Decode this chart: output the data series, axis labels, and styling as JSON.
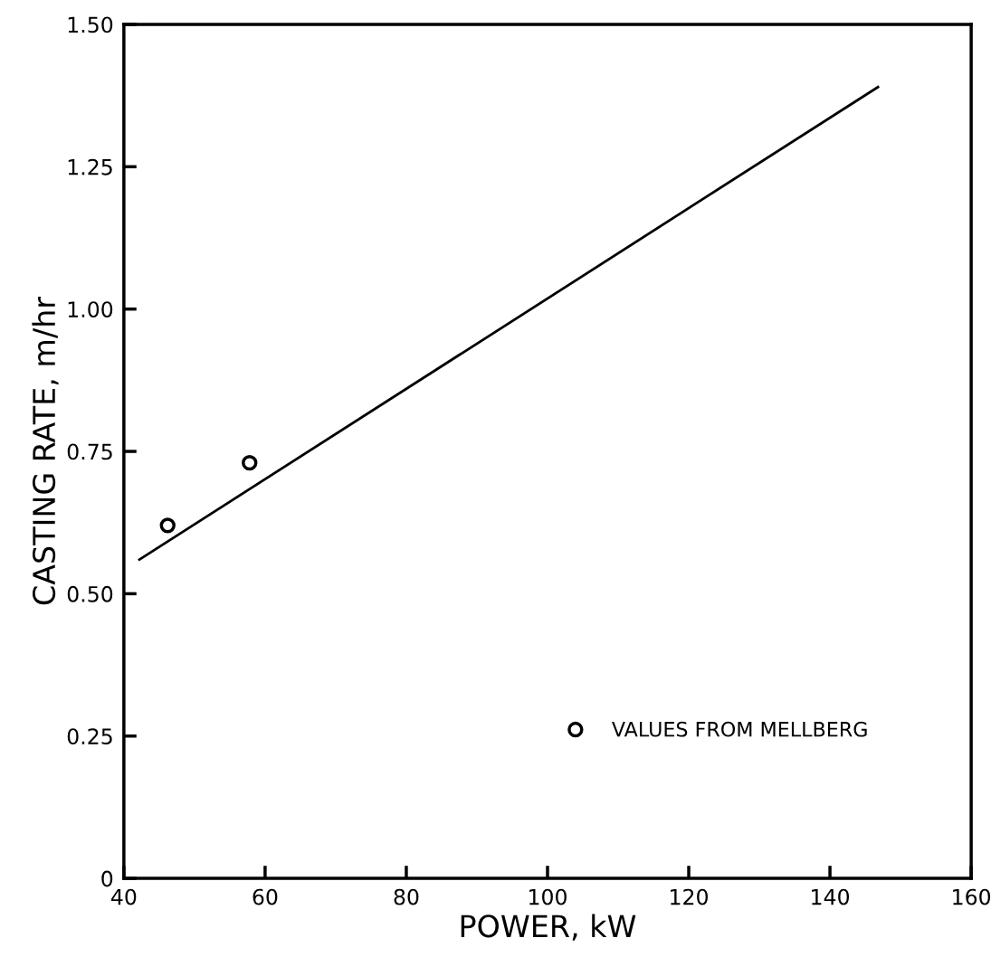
{
  "chart_data": {
    "type": "scatter",
    "xlabel": "POWER, kW",
    "ylabel": "CASTING RATE, m/hr",
    "xlim": [
      40,
      160
    ],
    "xticks": [
      40,
      60,
      80,
      100,
      120,
      140,
      160
    ],
    "ylim": [
      0,
      1.5
    ],
    "yticks": [
      {
        "value": 0,
        "label": "0"
      },
      {
        "value": 0.25,
        "label": "0.25"
      },
      {
        "value": 0.5,
        "label": "0.50"
      },
      {
        "value": 0.75,
        "label": "0.75"
      },
      {
        "value": 1.0,
        "label": "1.00"
      },
      {
        "value": 1.25,
        "label": "1.25"
      },
      {
        "value": 1.5,
        "label": "1.50"
      }
    ],
    "grid": false,
    "legend": "bottom right",
    "series": [
      {
        "name": "VALUES FROM MELLBERG",
        "marker": "circle",
        "color": "#000000",
        "x": [
          46.2,
          57.8
        ],
        "values": [
          0.62,
          0.73
        ]
      },
      {
        "type": "line",
        "color": "#000000",
        "line_style": "solid",
        "x": [
          42.2,
          146.8
        ],
        "values": [
          0.56,
          1.39
        ]
      }
    ]
  }
}
